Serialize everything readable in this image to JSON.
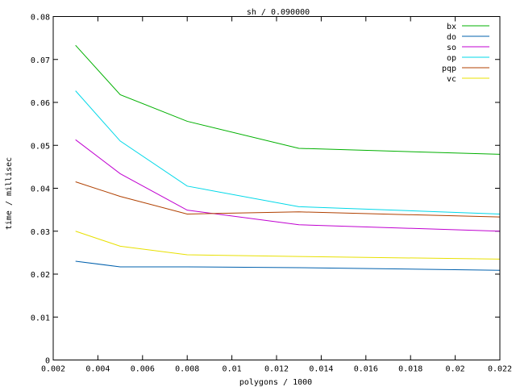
{
  "chart_data": {
    "type": "line",
    "title": "sh / 0.090000",
    "xlabel": "polygons / 1000",
    "ylabel": "time / millisec",
    "xlim": [
      0.002,
      0.022
    ],
    "ylim": [
      0,
      0.08
    ],
    "x_ticks": [
      0.002,
      0.004,
      0.006,
      0.008,
      0.01,
      0.012,
      0.014,
      0.016,
      0.018,
      0.02,
      0.022
    ],
    "x_tick_labels": [
      "0.002",
      "0.004",
      "0.006",
      "0.008",
      "0.01",
      "0.012",
      "0.014",
      "0.016",
      "0.018",
      "0.02",
      "0.022"
    ],
    "y_ticks": [
      0,
      0.01,
      0.02,
      0.03,
      0.04,
      0.05,
      0.06,
      0.07,
      0.08
    ],
    "y_tick_labels": [
      "0",
      "0.01",
      "0.02",
      "0.03",
      "0.04",
      "0.05",
      "0.06",
      "0.07",
      "0.08"
    ],
    "grid": false,
    "legend": "top-right",
    "x": [
      0.003,
      0.005,
      0.008,
      0.013,
      0.022
    ],
    "series": [
      {
        "name": "bx",
        "color": "#00b000",
        "values": [
          0.0733,
          0.0618,
          0.0556,
          0.0493,
          0.0479
        ]
      },
      {
        "name": "do",
        "color": "#0060ad",
        "values": [
          0.023,
          0.0217,
          0.0217,
          0.0215,
          0.0209
        ]
      },
      {
        "name": "so",
        "color": "#c000d0",
        "values": [
          0.0513,
          0.0434,
          0.0349,
          0.0315,
          0.03
        ]
      },
      {
        "name": "op",
        "color": "#00d8e8",
        "values": [
          0.0627,
          0.051,
          0.0405,
          0.0357,
          0.034
        ]
      },
      {
        "name": "pqp",
        "color": "#b04000",
        "values": [
          0.0415,
          0.0381,
          0.034,
          0.0345,
          0.0333
        ]
      },
      {
        "name": "vc",
        "color": "#e8e000",
        "values": [
          0.03,
          0.0265,
          0.0245,
          0.0241,
          0.0235
        ]
      }
    ]
  }
}
